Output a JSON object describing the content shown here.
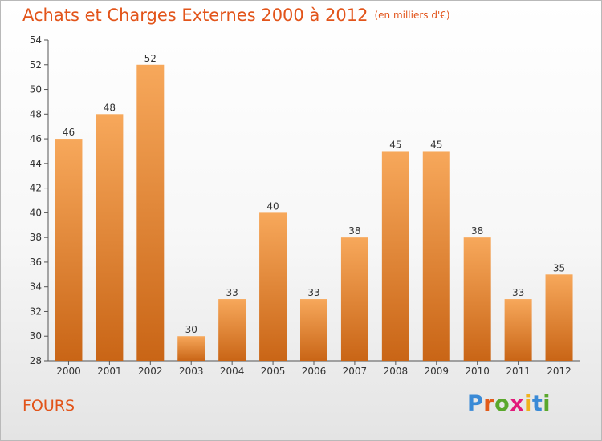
{
  "header": {
    "title": "Achats et Charges Externes 2000 à 2012",
    "unit": "(en milliers d'€)"
  },
  "commune": "FOURS",
  "logo": {
    "text": "Proxiti",
    "letter_colors": [
      "#3a8ad6",
      "#e25b1a",
      "#5aa82c",
      "#e21a7a",
      "#f0b21c",
      "#3a8ad6",
      "#5aa82c"
    ]
  },
  "colors": {
    "bar_top": "#f7a85b",
    "bar_bottom": "#c96516",
    "title": "#e2541a"
  },
  "chart_data": {
    "type": "bar",
    "title": "Achats et Charges Externes 2000 à 2012",
    "subtitle": "(en milliers d'€)",
    "categories": [
      "2000",
      "2001",
      "2002",
      "2003",
      "2004",
      "2005",
      "2006",
      "2007",
      "2008",
      "2009",
      "2010",
      "2011",
      "2012"
    ],
    "values": [
      46,
      48,
      52,
      30,
      33,
      40,
      33,
      38,
      45,
      45,
      38,
      33,
      35
    ],
    "ylim": [
      28,
      54
    ],
    "yticks": [
      28,
      30,
      32,
      34,
      36,
      38,
      40,
      42,
      44,
      46,
      48,
      50,
      52,
      54
    ],
    "grid": false,
    "xlabel": "",
    "ylabel": ""
  }
}
